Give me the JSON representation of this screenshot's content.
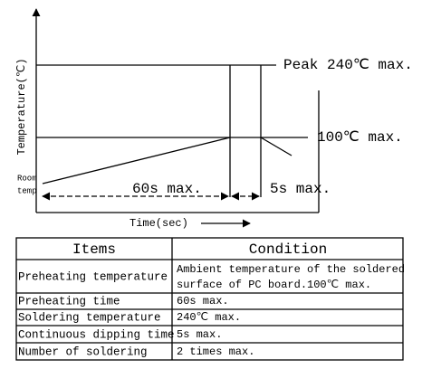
{
  "diagram": {
    "y_axis_label": "Temperature(℃)",
    "peak_label": "Peak 240℃ max.",
    "preheat_label": "100℃ max.",
    "room_label": [
      "Room",
      "temp"
    ],
    "preheat_time_label": "60s max.",
    "dip_time_label": "5s max.",
    "x_axis_label": "Time(sec)"
  },
  "table": {
    "header": [
      "Items",
      "Condition"
    ],
    "rows": [
      [
        "Preheating temperature",
        [
          "Ambient temperature of the soldered",
          "surface of  PC board.100℃ max."
        ]
      ],
      [
        "Preheating time",
        "60s max."
      ],
      [
        "Soldering temperature",
        "240℃ max."
      ],
      [
        "Continuous dipping time",
        "5s max."
      ],
      [
        "Number of soldering",
        "2 times max."
      ]
    ]
  }
}
